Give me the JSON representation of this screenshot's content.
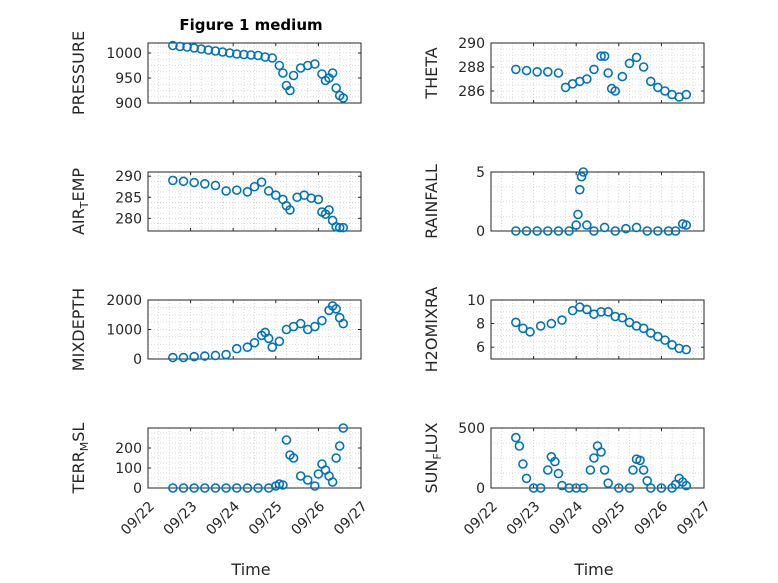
{
  "title": "Figure 1 medium",
  "colors": {
    "marker": "#0072BD",
    "axis": "#262626",
    "grid": "#cfcfcf"
  },
  "chart_data": [
    {
      "type": "scatter",
      "ylabel": "PRESSURE",
      "ylabel_parts": [
        "PRESSURE"
      ],
      "ylim": [
        900,
        1020
      ],
      "yticks": [
        900,
        950,
        1000
      ],
      "x": [
        "09/22 14:00",
        "09/22 18:00",
        "09/22 22:00",
        "09/23 02:00",
        "09/23 06:00",
        "09/23 10:00",
        "09/23 14:00",
        "09/23 18:00",
        "09/23 22:00",
        "09/24 02:00",
        "09/24 06:00",
        "09/24 10:00",
        "09/24 14:00",
        "09/24 18:00",
        "09/24 22:00",
        "09/25 02:00",
        "09/25 04:00",
        "09/25 06:00",
        "09/25 08:00",
        "09/25 10:00",
        "09/25 14:00",
        "09/25 18:00",
        "09/25 22:00",
        "09/26 02:00",
        "09/26 04:00",
        "09/26 06:00",
        "09/26 08:00",
        "09/26 10:00",
        "09/26 12:00",
        "09/26 14:00"
      ],
      "y": [
        1015,
        1013,
        1012,
        1010,
        1008,
        1006,
        1004,
        1002,
        1000,
        998,
        997,
        996,
        995,
        992,
        990,
        975,
        960,
        935,
        925,
        955,
        970,
        975,
        978,
        958,
        945,
        950,
        960,
        930,
        915,
        910
      ]
    },
    {
      "type": "scatter",
      "ylabel": "THETA",
      "ylabel_parts": [
        "THETA"
      ],
      "ylim": [
        285,
        290
      ],
      "yticks": [
        286,
        288,
        290
      ],
      "x": [
        "09/22 14:00",
        "09/22 20:00",
        "09/23 02:00",
        "09/23 08:00",
        "09/23 14:00",
        "09/23 18:00",
        "09/23 22:00",
        "09/24 02:00",
        "09/24 06:00",
        "09/24 10:00",
        "09/24 14:00",
        "09/24 16:00",
        "09/24 18:00",
        "09/24 20:00",
        "09/24 22:00",
        "09/25 02:00",
        "09/25 06:00",
        "09/25 10:00",
        "09/25 14:00",
        "09/25 18:00",
        "09/25 22:00",
        "09/26 02:00",
        "09/26 06:00",
        "09/26 10:00",
        "09/26 14:00"
      ],
      "y": [
        287.8,
        287.7,
        287.6,
        287.6,
        287.5,
        286.3,
        286.6,
        286.8,
        287.0,
        287.8,
        288.9,
        288.9,
        287.5,
        286.2,
        286.0,
        287.2,
        288.3,
        288.8,
        288.0,
        286.8,
        286.3,
        286.0,
        285.7,
        285.5,
        285.7
      ]
    },
    {
      "type": "scatter",
      "ylabel": "AIR_TEMP",
      "ylabel_parts": [
        "AIR",
        "T",
        "EMP"
      ],
      "ylim": [
        277,
        291
      ],
      "yticks": [
        280,
        285,
        290
      ],
      "x": [
        "09/22 14:00",
        "09/22 20:00",
        "09/23 02:00",
        "09/23 08:00",
        "09/23 14:00",
        "09/23 20:00",
        "09/24 02:00",
        "09/24 08:00",
        "09/24 12:00",
        "09/24 16:00",
        "09/24 20:00",
        "09/25 00:00",
        "09/25 04:00",
        "09/25 06:00",
        "09/25 08:00",
        "09/25 12:00",
        "09/25 16:00",
        "09/25 20:00",
        "09/26 00:00",
        "09/26 02:00",
        "09/26 04:00",
        "09/26 06:00",
        "09/26 08:00",
        "09/26 10:00",
        "09/26 12:00",
        "09/26 14:00"
      ],
      "y": [
        289.0,
        288.8,
        288.5,
        288.2,
        287.8,
        286.5,
        286.7,
        286.3,
        287.5,
        288.6,
        286.5,
        285.5,
        284.5,
        283.0,
        282.0,
        285.0,
        285.5,
        284.8,
        284.5,
        281.5,
        281.0,
        282.0,
        279.5,
        278.0,
        277.8,
        277.8
      ]
    },
    {
      "type": "scatter",
      "ylabel": "RAINFALL",
      "ylabel_parts": [
        "RAINFALL"
      ],
      "ylim": [
        0,
        5
      ],
      "yticks": [
        0,
        5
      ],
      "x": [
        "09/22 14:00",
        "09/22 20:00",
        "09/23 02:00",
        "09/23 08:00",
        "09/23 14:00",
        "09/23 20:00",
        "09/24 00:00",
        "09/24 01:00",
        "09/24 02:00",
        "09/24 03:00",
        "09/24 04:00",
        "09/24 06:00",
        "09/24 10:00",
        "09/24 16:00",
        "09/24 22:00",
        "09/25 04:00",
        "09/25 10:00",
        "09/25 16:00",
        "09/25 22:00",
        "09/26 04:00",
        "09/26 08:00",
        "09/26 12:00",
        "09/26 14:00"
      ],
      "y": [
        0,
        0,
        0,
        0,
        0,
        0,
        0.5,
        1.4,
        3.5,
        4.6,
        5.0,
        0.5,
        0,
        0.3,
        0,
        0.2,
        0.3,
        0,
        0,
        0,
        0,
        0.6,
        0.5
      ]
    },
    {
      "type": "scatter",
      "ylabel": "MIXDEPTH",
      "ylabel_parts": [
        "MIXDEPTH"
      ],
      "ylim": [
        0,
        2000
      ],
      "yticks": [
        0,
        1000,
        2000
      ],
      "x": [
        "09/22 14:00",
        "09/22 20:00",
        "09/23 02:00",
        "09/23 08:00",
        "09/23 14:00",
        "09/23 20:00",
        "09/24 02:00",
        "09/24 08:00",
        "09/24 12:00",
        "09/24 16:00",
        "09/24 18:00",
        "09/24 20:00",
        "09/24 22:00",
        "09/25 02:00",
        "09/25 06:00",
        "09/25 10:00",
        "09/25 14:00",
        "09/25 18:00",
        "09/25 22:00",
        "09/26 02:00",
        "09/26 06:00",
        "09/26 08:00",
        "09/26 10:00",
        "09/26 12:00",
        "09/26 14:00"
      ],
      "y": [
        50,
        50,
        80,
        100,
        120,
        150,
        350,
        400,
        550,
        800,
        900,
        700,
        400,
        600,
        1000,
        1100,
        1200,
        1000,
        1100,
        1300,
        1650,
        1800,
        1700,
        1400,
        1200
      ]
    },
    {
      "type": "scatter",
      "ylabel": "H2OMIXRA",
      "ylabel_parts": [
        "H2OMIXRA"
      ],
      "ylim": [
        5,
        10
      ],
      "yticks": [
        6,
        8,
        10
      ],
      "x": [
        "09/22 14:00",
        "09/22 18:00",
        "09/22 22:00",
        "09/23 04:00",
        "09/23 10:00",
        "09/23 16:00",
        "09/23 22:00",
        "09/24 02:00",
        "09/24 06:00",
        "09/24 10:00",
        "09/24 14:00",
        "09/24 18:00",
        "09/24 22:00",
        "09/25 02:00",
        "09/25 06:00",
        "09/25 10:00",
        "09/25 14:00",
        "09/25 18:00",
        "09/25 22:00",
        "09/26 02:00",
        "09/26 06:00",
        "09/26 10:00",
        "09/26 14:00"
      ],
      "y": [
        8.1,
        7.6,
        7.3,
        7.8,
        8.0,
        8.3,
        9.1,
        9.4,
        9.2,
        8.8,
        9.0,
        9.0,
        8.6,
        8.5,
        8.1,
        7.8,
        7.6,
        7.2,
        6.9,
        6.6,
        6.2,
        5.9,
        5.8
      ]
    },
    {
      "type": "scatter",
      "ylabel": "TERR_MSL",
      "ylabel_parts": [
        "TERR",
        "M",
        "SL"
      ],
      "ylim": [
        0,
        300
      ],
      "yticks": [
        0,
        100,
        200
      ],
      "x": [
        "09/22 14:00",
        "09/22 20:00",
        "09/23 02:00",
        "09/23 08:00",
        "09/23 14:00",
        "09/23 20:00",
        "09/24 02:00",
        "09/24 08:00",
        "09/24 14:00",
        "09/24 20:00",
        "09/25 00:00",
        "09/25 02:00",
        "09/25 04:00",
        "09/25 06:00",
        "09/25 08:00",
        "09/25 10:00",
        "09/25 14:00",
        "09/25 18:00",
        "09/25 22:00",
        "09/26 00:00",
        "09/26 02:00",
        "09/26 04:00",
        "09/26 06:00",
        "09/26 08:00",
        "09/26 10:00",
        "09/26 12:00",
        "09/26 14:00"
      ],
      "y": [
        0,
        0,
        0,
        0,
        0,
        0,
        0,
        0,
        0,
        0,
        10,
        20,
        15,
        240,
        165,
        150,
        60,
        40,
        10,
        70,
        120,
        90,
        60,
        30,
        150,
        210,
        300
      ]
    },
    {
      "type": "scatter",
      "ylabel": "SUN_FLUX",
      "ylabel_parts": [
        "SUN",
        "F",
        "LUX"
      ],
      "ylim": [
        0,
        500
      ],
      "yticks": [
        0,
        500
      ],
      "x": [
        "09/22 14:00",
        "09/22 16:00",
        "09/22 18:00",
        "09/22 20:00",
        "09/23 00:00",
        "09/23 04:00",
        "09/23 08:00",
        "09/23 10:00",
        "09/23 12:00",
        "09/23 14:00",
        "09/23 16:00",
        "09/23 20:00",
        "09/24 00:00",
        "09/24 04:00",
        "09/24 08:00",
        "09/24 10:00",
        "09/24 12:00",
        "09/24 14:00",
        "09/24 16:00",
        "09/24 18:00",
        "09/25 00:00",
        "09/25 06:00",
        "09/25 08:00",
        "09/25 10:00",
        "09/25 12:00",
        "09/25 14:00",
        "09/25 16:00",
        "09/25 18:00",
        "09/26 00:00",
        "09/26 06:00",
        "09/26 08:00",
        "09/26 10:00",
        "09/26 12:00",
        "09/26 14:00"
      ],
      "y": [
        420,
        350,
        200,
        80,
        0,
        0,
        150,
        260,
        220,
        120,
        20,
        0,
        0,
        0,
        150,
        250,
        350,
        300,
        150,
        40,
        0,
        0,
        150,
        240,
        230,
        150,
        60,
        0,
        0,
        0,
        30,
        80,
        50,
        20
      ]
    }
  ],
  "x_axis": {
    "tick_labels": [
      "09/22",
      "09/23",
      "09/24",
      "09/25",
      "09/26",
      "09/27"
    ],
    "label": "Time"
  }
}
